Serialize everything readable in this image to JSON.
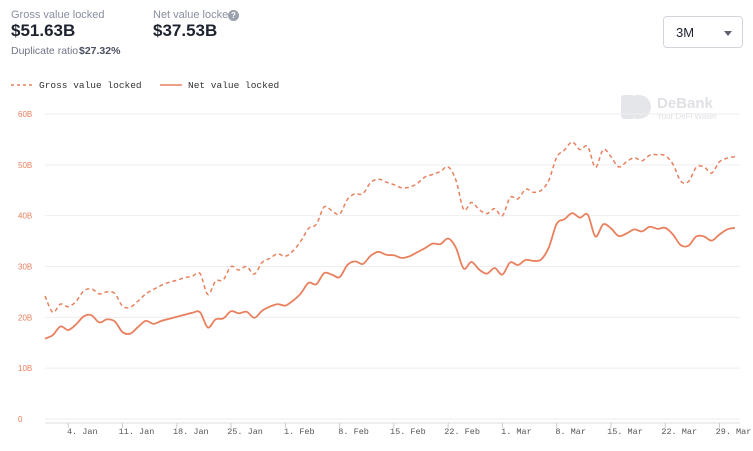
{
  "header": {
    "gross": {
      "label": "Gross value locked",
      "value": "$51.63B"
    },
    "net": {
      "label": "Net value locked",
      "value": "$37.53B",
      "help_icon": "question-icon"
    },
    "duplicate": {
      "label": "Duplicate ratio",
      "value": "$27.32%"
    }
  },
  "range_select": {
    "value": "3M",
    "icon": "chevron-down-icon"
  },
  "watermark": {
    "name": "DeBank",
    "tagline": "Your DeFi Wallet"
  },
  "colors": {
    "line": "#e8805e",
    "grid": "#eeeeee",
    "tick": "#e8805e"
  },
  "chart_data": {
    "type": "line",
    "title": "",
    "xlabel": "",
    "ylabel": "",
    "ylim": [
      0,
      60
    ],
    "yticks": [
      "0",
      "10B",
      "20B",
      "30B",
      "40B",
      "50B",
      "60B"
    ],
    "y_tick_values": [
      0,
      10,
      20,
      30,
      40,
      50,
      60
    ],
    "x_start": "2021-01-01",
    "x_end": "2021-03-31",
    "x_ticks": [
      {
        "date": "2021-01-04",
        "label": "4. Jan"
      },
      {
        "date": "2021-01-11",
        "label": "11. Jan"
      },
      {
        "date": "2021-01-18",
        "label": "18. Jan"
      },
      {
        "date": "2021-01-25",
        "label": "25. Jan"
      },
      {
        "date": "2021-02-01",
        "label": "1. Feb"
      },
      {
        "date": "2021-02-08",
        "label": "8. Feb"
      },
      {
        "date": "2021-02-15",
        "label": "15. Feb"
      },
      {
        "date": "2021-02-22",
        "label": "22. Feb"
      },
      {
        "date": "2021-03-01",
        "label": "1. Mar"
      },
      {
        "date": "2021-03-08",
        "label": "8. Mar"
      },
      {
        "date": "2021-03-15",
        "label": "15. Mar"
      },
      {
        "date": "2021-03-22",
        "label": "22. Mar"
      },
      {
        "date": "2021-03-29",
        "label": "29. Mar"
      }
    ],
    "grid": true,
    "legend_position": "top-left",
    "series": [
      {
        "name": "Gross value locked",
        "style": "dashed",
        "points": [
          [
            "2021-01-01",
            24.2
          ],
          [
            "2021-01-02",
            21.0
          ],
          [
            "2021-01-03",
            22.6
          ],
          [
            "2021-01-04",
            22.1
          ],
          [
            "2021-01-05",
            23.1
          ],
          [
            "2021-01-06",
            25.2
          ],
          [
            "2021-01-07",
            25.6
          ],
          [
            "2021-01-08",
            24.6
          ],
          [
            "2021-01-09",
            25.0
          ],
          [
            "2021-01-10",
            24.7
          ],
          [
            "2021-01-11",
            22.2
          ],
          [
            "2021-01-12",
            22.0
          ],
          [
            "2021-01-13",
            23.2
          ],
          [
            "2021-01-14",
            24.6
          ],
          [
            "2021-01-15",
            25.5
          ],
          [
            "2021-01-16",
            26.3
          ],
          [
            "2021-01-17",
            26.9
          ],
          [
            "2021-01-18",
            27.3
          ],
          [
            "2021-01-19",
            27.8
          ],
          [
            "2021-01-20",
            28.1
          ],
          [
            "2021-01-21",
            28.6
          ],
          [
            "2021-01-22",
            24.5
          ],
          [
            "2021-01-23",
            27.1
          ],
          [
            "2021-01-24",
            27.4
          ],
          [
            "2021-01-25",
            30.0
          ],
          [
            "2021-01-26",
            29.3
          ],
          [
            "2021-01-27",
            30.0
          ],
          [
            "2021-01-28",
            28.5
          ],
          [
            "2021-01-29",
            30.8
          ],
          [
            "2021-01-30",
            31.6
          ],
          [
            "2021-01-31",
            32.5
          ],
          [
            "2021-02-01",
            32.0
          ],
          [
            "2021-02-02",
            33.1
          ],
          [
            "2021-02-03",
            35.0
          ],
          [
            "2021-02-04",
            37.5
          ],
          [
            "2021-02-05",
            38.3
          ],
          [
            "2021-02-06",
            41.7
          ],
          [
            "2021-02-07",
            41.0
          ],
          [
            "2021-02-08",
            40.3
          ],
          [
            "2021-02-09",
            43.2
          ],
          [
            "2021-02-10",
            44.3
          ],
          [
            "2021-02-11",
            44.3
          ],
          [
            "2021-02-12",
            46.5
          ],
          [
            "2021-02-13",
            47.2
          ],
          [
            "2021-02-14",
            46.6
          ],
          [
            "2021-02-15",
            46.1
          ],
          [
            "2021-02-16",
            45.5
          ],
          [
            "2021-02-17",
            45.6
          ],
          [
            "2021-02-18",
            46.3
          ],
          [
            "2021-02-19",
            47.6
          ],
          [
            "2021-02-20",
            48.1
          ],
          [
            "2021-02-21",
            48.7
          ],
          [
            "2021-02-22",
            49.6
          ],
          [
            "2021-02-23",
            47.0
          ],
          [
            "2021-02-24",
            41.2
          ],
          [
            "2021-02-25",
            42.6
          ],
          [
            "2021-02-26",
            41.2
          ],
          [
            "2021-02-27",
            40.4
          ],
          [
            "2021-02-28",
            41.4
          ],
          [
            "2021-03-01",
            40.0
          ],
          [
            "2021-03-02",
            43.6
          ],
          [
            "2021-03-03",
            43.3
          ],
          [
            "2021-03-04",
            45.2
          ],
          [
            "2021-03-05",
            44.6
          ],
          [
            "2021-03-06",
            45.0
          ],
          [
            "2021-03-07",
            47.0
          ],
          [
            "2021-03-08",
            51.5
          ],
          [
            "2021-03-09",
            52.9
          ],
          [
            "2021-03-10",
            54.5
          ],
          [
            "2021-03-11",
            53.0
          ],
          [
            "2021-03-12",
            53.6
          ],
          [
            "2021-03-13",
            49.5
          ],
          [
            "2021-03-14",
            53.0
          ],
          [
            "2021-03-15",
            51.6
          ],
          [
            "2021-03-16",
            49.6
          ],
          [
            "2021-03-17",
            50.6
          ],
          [
            "2021-03-18",
            51.4
          ],
          [
            "2021-03-19",
            50.8
          ],
          [
            "2021-03-20",
            51.9
          ],
          [
            "2021-03-21",
            52.0
          ],
          [
            "2021-03-22",
            51.8
          ],
          [
            "2021-03-23",
            50.1
          ],
          [
            "2021-03-24",
            46.8
          ],
          [
            "2021-03-25",
            46.7
          ],
          [
            "2021-03-26",
            49.5
          ],
          [
            "2021-03-27",
            49.6
          ],
          [
            "2021-03-28",
            48.4
          ],
          [
            "2021-03-29",
            50.6
          ],
          [
            "2021-03-30",
            51.3
          ],
          [
            "2021-03-31",
            51.6
          ]
        ]
      },
      {
        "name": "Net value locked",
        "style": "solid",
        "points": [
          [
            "2021-01-01",
            15.8
          ],
          [
            "2021-01-02",
            16.5
          ],
          [
            "2021-01-03",
            18.2
          ],
          [
            "2021-01-04",
            17.5
          ],
          [
            "2021-01-05",
            18.6
          ],
          [
            "2021-01-06",
            20.2
          ],
          [
            "2021-01-07",
            20.4
          ],
          [
            "2021-01-08",
            19.0
          ],
          [
            "2021-01-09",
            19.6
          ],
          [
            "2021-01-10",
            19.2
          ],
          [
            "2021-01-11",
            17.1
          ],
          [
            "2021-01-12",
            16.8
          ],
          [
            "2021-01-13",
            18.1
          ],
          [
            "2021-01-14",
            19.3
          ],
          [
            "2021-01-15",
            18.7
          ],
          [
            "2021-01-16",
            19.3
          ],
          [
            "2021-01-17",
            19.7
          ],
          [
            "2021-01-18",
            20.1
          ],
          [
            "2021-01-19",
            20.5
          ],
          [
            "2021-01-20",
            20.9
          ],
          [
            "2021-01-21",
            21.0
          ],
          [
            "2021-01-22",
            18.0
          ],
          [
            "2021-01-23",
            19.6
          ],
          [
            "2021-01-24",
            19.8
          ],
          [
            "2021-01-25",
            21.2
          ],
          [
            "2021-01-26",
            20.8
          ],
          [
            "2021-01-27",
            21.1
          ],
          [
            "2021-01-28",
            19.9
          ],
          [
            "2021-01-29",
            21.3
          ],
          [
            "2021-01-30",
            22.1
          ],
          [
            "2021-01-31",
            22.6
          ],
          [
            "2021-02-01",
            22.3
          ],
          [
            "2021-02-02",
            23.3
          ],
          [
            "2021-02-03",
            24.7
          ],
          [
            "2021-02-04",
            26.8
          ],
          [
            "2021-02-05",
            26.5
          ],
          [
            "2021-02-06",
            28.7
          ],
          [
            "2021-02-07",
            28.4
          ],
          [
            "2021-02-08",
            27.9
          ],
          [
            "2021-02-09",
            30.3
          ],
          [
            "2021-02-10",
            31.0
          ],
          [
            "2021-02-11",
            30.5
          ],
          [
            "2021-02-12",
            32.1
          ],
          [
            "2021-02-13",
            32.9
          ],
          [
            "2021-02-14",
            32.3
          ],
          [
            "2021-02-15",
            32.2
          ],
          [
            "2021-02-16",
            31.7
          ],
          [
            "2021-02-17",
            32.0
          ],
          [
            "2021-02-18",
            32.8
          ],
          [
            "2021-02-19",
            33.6
          ],
          [
            "2021-02-20",
            34.5
          ],
          [
            "2021-02-21",
            34.4
          ],
          [
            "2021-02-22",
            35.5
          ],
          [
            "2021-02-23",
            33.7
          ],
          [
            "2021-02-24",
            29.6
          ],
          [
            "2021-02-25",
            30.9
          ],
          [
            "2021-02-26",
            29.4
          ],
          [
            "2021-02-27",
            28.6
          ],
          [
            "2021-02-28",
            29.7
          ],
          [
            "2021-03-01",
            28.4
          ],
          [
            "2021-03-02",
            30.8
          ],
          [
            "2021-03-03",
            30.3
          ],
          [
            "2021-03-04",
            31.3
          ],
          [
            "2021-03-05",
            31.1
          ],
          [
            "2021-03-06",
            31.4
          ],
          [
            "2021-03-07",
            33.8
          ],
          [
            "2021-03-08",
            38.4
          ],
          [
            "2021-03-09",
            39.3
          ],
          [
            "2021-03-10",
            40.5
          ],
          [
            "2021-03-11",
            39.6
          ],
          [
            "2021-03-12",
            40.2
          ],
          [
            "2021-03-13",
            35.9
          ],
          [
            "2021-03-14",
            38.3
          ],
          [
            "2021-03-15",
            37.5
          ],
          [
            "2021-03-16",
            36.0
          ],
          [
            "2021-03-17",
            36.5
          ],
          [
            "2021-03-18",
            37.3
          ],
          [
            "2021-03-19",
            36.9
          ],
          [
            "2021-03-20",
            37.8
          ],
          [
            "2021-03-21",
            37.4
          ],
          [
            "2021-03-22",
            37.6
          ],
          [
            "2021-03-23",
            36.3
          ],
          [
            "2021-03-24",
            34.2
          ],
          [
            "2021-03-25",
            34.1
          ],
          [
            "2021-03-26",
            35.9
          ],
          [
            "2021-03-27",
            35.9
          ],
          [
            "2021-03-28",
            35.1
          ],
          [
            "2021-03-29",
            36.3
          ],
          [
            "2021-03-30",
            37.3
          ],
          [
            "2021-03-31",
            37.6
          ]
        ]
      }
    ]
  }
}
